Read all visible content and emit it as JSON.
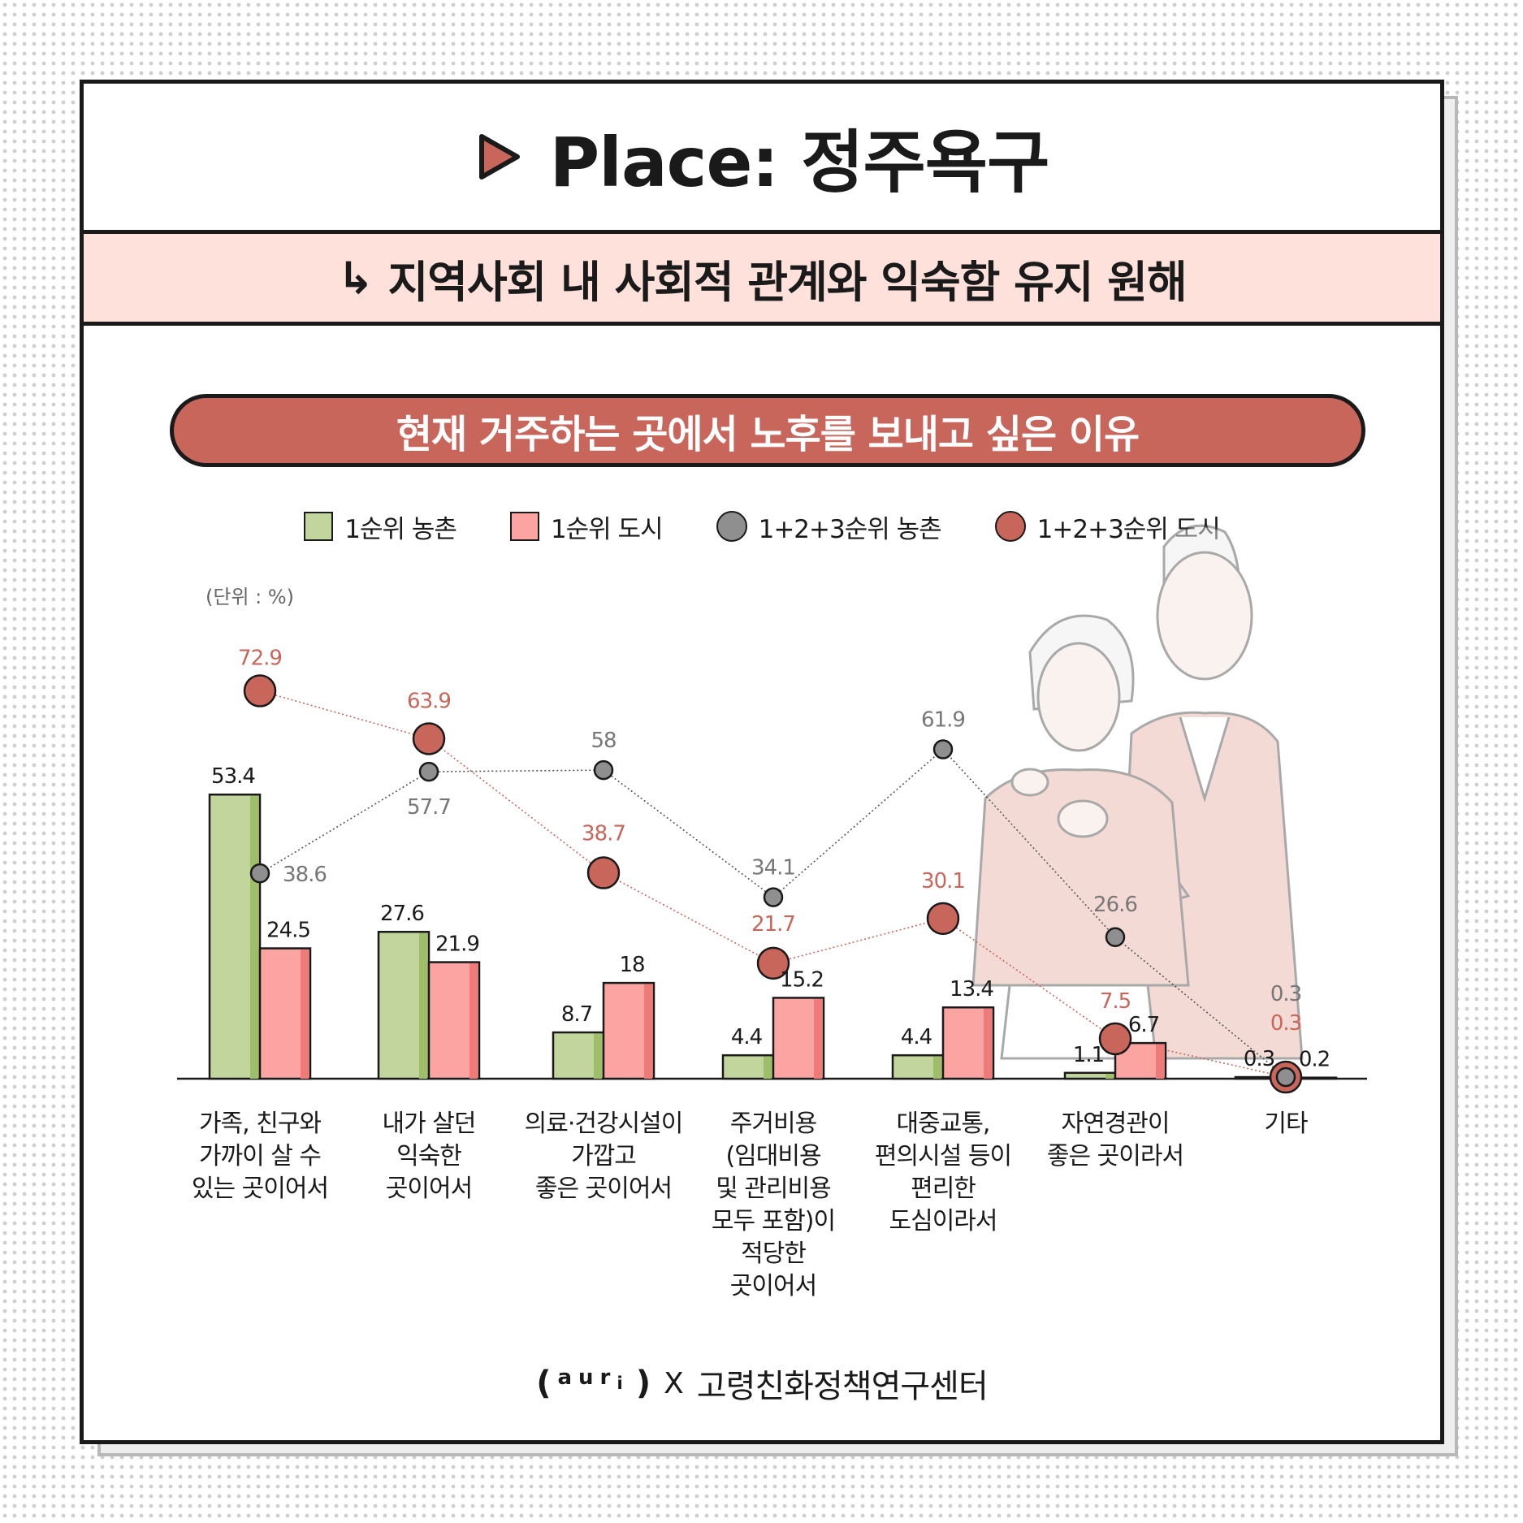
{
  "header": {
    "title": "Place: 정주욕구",
    "subtitle_arrow": "↳",
    "subtitle": "지역사회 내 사회적 관계와 익숙함 유지 원해"
  },
  "footer": {
    "logo_left": "(",
    "logo_mid": "aur",
    "logo_sub": "i",
    "logo_right": ")",
    "times": "X",
    "org": "고령친화정책연구센터"
  },
  "colors": {
    "bar_rural": "#c2d59d",
    "bar_rural_dark": "#9fbe6a",
    "bar_urban": "#fba4a1",
    "bar_urban_dark": "#ee7b77",
    "dot_rural": "#8f8f8f",
    "dot_urban": "#c9665c",
    "label_rural_line": "#777777",
    "label_urban_line": "#c9665c"
  },
  "chart_data": {
    "type": "bar",
    "title": "현재 거주하는 곳에서 노후를 보내고 싶은 이유",
    "unit_label": "(단위 : %)",
    "categories": [
      [
        "가족, 친구와",
        "가까이 살 수",
        "있는 곳이어서"
      ],
      [
        "내가 살던",
        "익숙한",
        "곳이어서"
      ],
      [
        "의료·건강시설이",
        "가깝고",
        "좋은 곳이어서"
      ],
      [
        "주거비용",
        "(임대비용",
        "및 관리비용",
        "모두 포함)이",
        "적당한",
        "곳이어서"
      ],
      [
        "대중교통,",
        "편의시설 등이",
        "편리한",
        "도심이라서"
      ],
      [
        "자연경관이",
        "좋은 곳이라서"
      ],
      [
        "기타"
      ]
    ],
    "series": [
      {
        "name": "1순위 농촌",
        "kind": "bar",
        "values": [
          53.4,
          27.6,
          8.7,
          4.4,
          4.4,
          1.1,
          0.3
        ]
      },
      {
        "name": "1순위 도시",
        "kind": "bar",
        "values": [
          24.5,
          21.9,
          18,
          15.2,
          13.4,
          6.7,
          0.2
        ]
      },
      {
        "name": "1+2+3순위 농촌",
        "kind": "line",
        "values": [
          38.6,
          57.7,
          58,
          34.1,
          61.9,
          26.6,
          0.3
        ]
      },
      {
        "name": "1+2+3순위 도시",
        "kind": "line",
        "values": [
          72.9,
          63.9,
          38.7,
          21.7,
          30.1,
          7.5,
          0.3
        ]
      }
    ],
    "ylim": [
      0,
      80
    ],
    "grid": false,
    "legend_position": "top"
  }
}
